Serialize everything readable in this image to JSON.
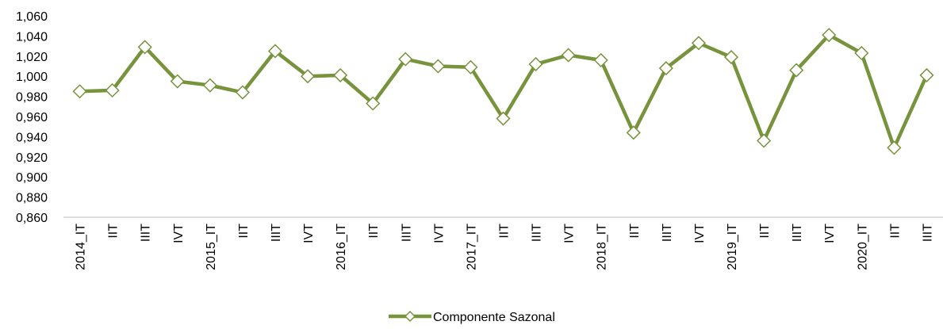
{
  "chart_data": {
    "type": "line",
    "categories": [
      "2014_IT",
      "IIT",
      "IIIT",
      "IVT",
      "2015_IT",
      "IIT",
      "IIIT",
      "IVT",
      "2016_IT",
      "IIT",
      "IIIT",
      "IVT",
      "2017_IT",
      "IIT",
      "IIIT",
      "IVT",
      "2018_IT",
      "IIT",
      "IIIT",
      "IVT",
      "2019_IT",
      "IIT",
      "IIIT",
      "IVT",
      "2020_IT",
      "IIT",
      "IIIT"
    ],
    "series": [
      {
        "name": "Componente Sazonal",
        "color": "#77933c",
        "values": [
          0.985,
          0.986,
          1.029,
          0.995,
          0.991,
          0.984,
          1.025,
          1.0,
          1.001,
          0.973,
          1.017,
          1.01,
          1.009,
          0.958,
          1.012,
          1.021,
          1.016,
          0.944,
          1.008,
          1.033,
          1.019,
          0.936,
          1.006,
          1.041,
          1.023,
          0.929,
          1.001
        ]
      }
    ],
    "ylim": [
      0.86,
      1.06
    ],
    "yticks": [
      {
        "value": 0.86,
        "label": "0,860"
      },
      {
        "value": 0.88,
        "label": "0,880"
      },
      {
        "value": 0.9,
        "label": "0,900"
      },
      {
        "value": 0.92,
        "label": "0,920"
      },
      {
        "value": 0.94,
        "label": "0,940"
      },
      {
        "value": 0.96,
        "label": "0,960"
      },
      {
        "value": 0.98,
        "label": "0,980"
      },
      {
        "value": 1.0,
        "label": "1,000"
      },
      {
        "value": 1.02,
        "label": "1,020"
      },
      {
        "value": 1.04,
        "label": "1,040"
      },
      {
        "value": 1.06,
        "label": "1,060"
      }
    ],
    "grid": false,
    "legend": "bottom"
  }
}
